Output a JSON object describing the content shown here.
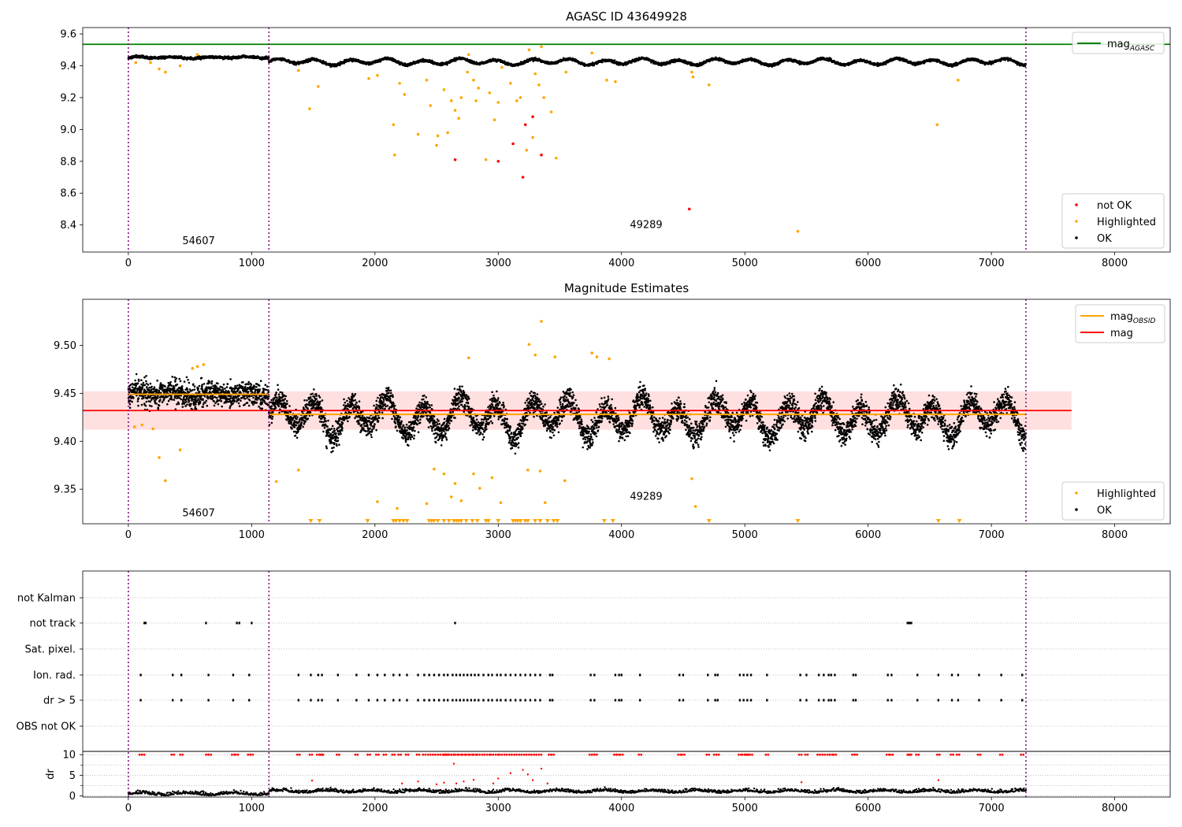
{
  "chart_data": [
    {
      "type": "scatter",
      "title": "AGASC ID 43649928",
      "xlim": [
        -370,
        8450
      ],
      "ylim": [
        8.23,
        9.64
      ],
      "xticks": [
        0,
        1000,
        2000,
        3000,
        4000,
        5000,
        6000,
        7000,
        8000
      ],
      "yticks": [
        8.4,
        8.6,
        8.8,
        9.0,
        9.2,
        9.4,
        9.6
      ],
      "ytick_decimals": 1,
      "obsid_boundaries": [
        0,
        1140,
        7280
      ],
      "obsid_labels": [
        {
          "text": "54607",
          "x": 570,
          "y": 8.28
        },
        {
          "text": "49289",
          "x": 4200,
          "y": 8.38
        }
      ],
      "hlines": [
        {
          "name": "mag_AGASC",
          "y": 9.535,
          "color": "#008000"
        }
      ],
      "legend_top": {
        "position": "upper-right",
        "entries": [
          {
            "label": "mag",
            "sub": "AGASC",
            "color": "#008000",
            "kind": "line"
          }
        ]
      },
      "legend_bottom": {
        "position": "lower-right",
        "entries": [
          {
            "label": "not OK",
            "color": "#ff0000",
            "kind": "dot"
          },
          {
            "label": "Highlighted",
            "color": "#ffa500",
            "kind": "dot"
          },
          {
            "label": "OK",
            "color": "#000000",
            "kind": "dot"
          }
        ]
      },
      "ok_trace": {
        "color": "#000000",
        "segments": [
          {
            "x0": 0,
            "x1": 1140,
            "base": 9.452,
            "amp": 0.006
          },
          {
            "x0": 1140,
            "x1": 7280,
            "base": 9.425,
            "amp": 0.022
          }
        ]
      },
      "highlighted_points": [
        [
          60,
          9.42
        ],
        [
          180,
          9.42
        ],
        [
          250,
          9.38
        ],
        [
          300,
          9.36
        ],
        [
          420,
          9.4
        ],
        [
          560,
          9.47
        ],
        [
          1380,
          9.37
        ],
        [
          1470,
          9.13
        ],
        [
          1540,
          9.27
        ],
        [
          1950,
          9.32
        ],
        [
          2020,
          9.34
        ],
        [
          2150,
          9.03
        ],
        [
          2160,
          8.84
        ],
        [
          2200,
          9.29
        ],
        [
          2240,
          9.22
        ],
        [
          2350,
          8.97
        ],
        [
          2420,
          9.31
        ],
        [
          2450,
          9.15
        ],
        [
          2500,
          8.9
        ],
        [
          2510,
          8.96
        ],
        [
          2560,
          9.25
        ],
        [
          2590,
          8.98
        ],
        [
          2620,
          9.18
        ],
        [
          2650,
          9.12
        ],
        [
          2680,
          9.07
        ],
        [
          2700,
          9.2
        ],
        [
          2750,
          9.36
        ],
        [
          2760,
          9.47
        ],
        [
          2800,
          9.31
        ],
        [
          2820,
          9.18
        ],
        [
          2840,
          9.26
        ],
        [
          2900,
          8.81
        ],
        [
          2930,
          9.23
        ],
        [
          2970,
          9.06
        ],
        [
          3000,
          9.17
        ],
        [
          3030,
          9.39
        ],
        [
          3100,
          9.29
        ],
        [
          3150,
          9.18
        ],
        [
          3180,
          9.2
        ],
        [
          3230,
          8.87
        ],
        [
          3250,
          9.5
        ],
        [
          3280,
          8.95
        ],
        [
          3300,
          9.35
        ],
        [
          3330,
          9.28
        ],
        [
          3350,
          9.52
        ],
        [
          3370,
          9.2
        ],
        [
          3430,
          9.11
        ],
        [
          3470,
          8.82
        ],
        [
          3550,
          9.36
        ],
        [
          3760,
          9.48
        ],
        [
          3880,
          9.31
        ],
        [
          3950,
          9.3
        ],
        [
          4570,
          9.36
        ],
        [
          4580,
          9.33
        ],
        [
          4710,
          9.28
        ],
        [
          5430,
          8.36
        ],
        [
          6560,
          9.03
        ],
        [
          6730,
          9.31
        ]
      ],
      "not_ok_points": [
        [
          2650,
          8.81
        ],
        [
          3000,
          8.8
        ],
        [
          3120,
          8.91
        ],
        [
          3200,
          8.7
        ],
        [
          3220,
          9.03
        ],
        [
          3280,
          9.08
        ],
        [
          3350,
          8.84
        ],
        [
          4550,
          8.5
        ]
      ]
    },
    {
      "type": "scatter",
      "title": "Magnitude Estimates",
      "xlim": [
        -370,
        8450
      ],
      "ylim": [
        9.314,
        9.548
      ],
      "xticks": [
        0,
        1000,
        2000,
        3000,
        4000,
        5000,
        6000,
        7000,
        8000
      ],
      "yticks": [
        9.35,
        9.4,
        9.45,
        9.5
      ],
      "ytick_decimals": 2,
      "obsid_boundaries": [
        0,
        1140,
        7280
      ],
      "obsid_labels": [
        {
          "text": "54607",
          "x": 570,
          "y": 9.322
        },
        {
          "text": "49289",
          "x": 4200,
          "y": 9.339
        }
      ],
      "band": {
        "x0": -370,
        "x1": 7650,
        "y0": 9.412,
        "y1": 9.452,
        "color": "#ffcccc"
      },
      "mag_line": {
        "x0": -370,
        "x1": 7650,
        "y": 9.432,
        "color": "#ff0000"
      },
      "obsid_mag_lines": [
        {
          "x0": 0,
          "x1": 1140,
          "y": 9.449,
          "color": "#ffa500"
        },
        {
          "x0": 1140,
          "x1": 7280,
          "y": 9.428,
          "color": "#ffa500"
        }
      ],
      "legend_top": {
        "position": "upper-right",
        "entries": [
          {
            "label": "mag",
            "sub": "OBSID",
            "color": "#ffa500",
            "kind": "line"
          },
          {
            "label": "mag",
            "sub": "",
            "color": "#ff0000",
            "kind": "line"
          }
        ]
      },
      "legend_bottom": {
        "position": "lower-right",
        "entries": [
          {
            "label": "Highlighted",
            "color": "#ffa500",
            "kind": "dot"
          },
          {
            "label": "OK",
            "color": "#000000",
            "kind": "dot"
          }
        ]
      },
      "ok_trace": {
        "color": "#000000",
        "segments": [
          {
            "x0": 0,
            "x1": 1140,
            "base": 9.449,
            "amp": 0.004,
            "spread": 0.014
          },
          {
            "x0": 1140,
            "x1": 7280,
            "base": 9.425,
            "amp": 0.022,
            "spread": 0.014
          }
        ]
      },
      "highlighted_points": [
        [
          50,
          9.415
        ],
        [
          110,
          9.417
        ],
        [
          200,
          9.413
        ],
        [
          250,
          9.383
        ],
        [
          300,
          9.359
        ],
        [
          420,
          9.391
        ],
        [
          520,
          9.476
        ],
        [
          560,
          9.478
        ],
        [
          610,
          9.48
        ],
        [
          1200,
          9.358
        ],
        [
          1380,
          9.37
        ],
        [
          2020,
          9.337
        ],
        [
          2180,
          9.33
        ],
        [
          2420,
          9.335
        ],
        [
          2480,
          9.371
        ],
        [
          2560,
          9.366
        ],
        [
          2620,
          9.342
        ],
        [
          2650,
          9.356
        ],
        [
          2700,
          9.338
        ],
        [
          2760,
          9.487
        ],
        [
          2800,
          9.366
        ],
        [
          2850,
          9.351
        ],
        [
          2950,
          9.362
        ],
        [
          3020,
          9.336
        ],
        [
          3240,
          9.37
        ],
        [
          3250,
          9.501
        ],
        [
          3300,
          9.49
        ],
        [
          3340,
          9.369
        ],
        [
          3350,
          9.525
        ],
        [
          3380,
          9.336
        ],
        [
          3460,
          9.488
        ],
        [
          3540,
          9.359
        ],
        [
          3760,
          9.492
        ],
        [
          3800,
          9.488
        ],
        [
          3900,
          9.486
        ],
        [
          4570,
          9.361
        ],
        [
          4600,
          9.332
        ]
      ],
      "highlighted_floor": [
        1480,
        1550,
        1940,
        2150,
        2170,
        2200,
        2230,
        2260,
        2440,
        2460,
        2480,
        2510,
        2560,
        2600,
        2640,
        2660,
        2680,
        2700,
        2740,
        2790,
        2830,
        2900,
        2920,
        3000,
        3120,
        3140,
        3160,
        3180,
        3220,
        3240,
        3300,
        3340,
        3400,
        3450,
        3480,
        3860,
        3930,
        4710,
        5430,
        6570,
        6740
      ]
    },
    {
      "type": "scatter",
      "title": "",
      "xlim": [
        -370,
        8450
      ],
      "xticks": [
        0,
        1000,
        2000,
        3000,
        4000,
        5000,
        6000,
        7000,
        8000
      ],
      "obsid_boundaries": [
        0,
        1140,
        7280
      ],
      "flag_rows": [
        "not Kalman",
        "not track",
        "Sat. pixel.",
        "Ion. rad.",
        "dr > 5",
        "OBS not OK"
      ],
      "flag_points": {
        "not track": [
          130,
          140,
          630,
          880,
          900,
          1000,
          2650,
          6320,
          6330,
          6340,
          6350
        ],
        "Ion. rad.": [
          100,
          360,
          430,
          650,
          850,
          980,
          1380,
          1480,
          1540,
          1570,
          1700,
          1850,
          1950,
          2020,
          2080,
          2150,
          2200,
          2260,
          2350,
          2400,
          2440,
          2480,
          2520,
          2560,
          2590,
          2630,
          2660,
          2690,
          2720,
          2750,
          2780,
          2810,
          2840,
          2880,
          2920,
          2950,
          2990,
          3020,
          3060,
          3100,
          3140,
          3180,
          3220,
          3260,
          3300,
          3340,
          3420,
          3440,
          3750,
          3780,
          3950,
          3980,
          4000,
          4150,
          4470,
          4500,
          4700,
          4760,
          4780,
          4960,
          4990,
          5020,
          5050,
          5180,
          5450,
          5500,
          5600,
          5640,
          5680,
          5700,
          5730,
          5880,
          5900,
          6160,
          6190,
          6400,
          6570,
          6680,
          6730,
          6900,
          7080,
          7250
        ],
        "dr > 5": [
          100,
          360,
          430,
          650,
          850,
          980,
          1380,
          1480,
          1540,
          1570,
          1700,
          1850,
          1950,
          2020,
          2080,
          2150,
          2200,
          2260,
          2350,
          2400,
          2440,
          2480,
          2520,
          2560,
          2590,
          2630,
          2660,
          2690,
          2720,
          2750,
          2780,
          2810,
          2840,
          2880,
          2920,
          2950,
          2990,
          3020,
          3060,
          3100,
          3140,
          3180,
          3220,
          3260,
          3300,
          3340,
          3420,
          3440,
          3750,
          3780,
          3950,
          3980,
          4000,
          4150,
          4470,
          4500,
          4700,
          4760,
          4780,
          4960,
          4990,
          5020,
          5050,
          5180,
          5450,
          5500,
          5600,
          5640,
          5680,
          5700,
          5730,
          5880,
          5900,
          6160,
          6190,
          6400,
          6570,
          6680,
          6730,
          6900,
          7080,
          7250
        ]
      },
      "dr_panel": {
        "ylabel": "dr",
        "ylim": [
          -0.3,
          10.8
        ],
        "yticks": [
          0,
          5,
          10
        ],
        "minor_yticks": [
          2.5,
          7.5
        ],
        "ok_color": "#000000",
        "not_ok_color": "#ff0000",
        "saturated_value": 10,
        "saturated_x": [
          100,
          120,
          360,
          430,
          640,
          660,
          850,
          880,
          980,
          1000,
          1380,
          1480,
          1540,
          1560,
          1570,
          1700,
          1850,
          1950,
          2020,
          2080,
          2150,
          2200,
          2260,
          2350,
          2400,
          2440,
          2480,
          2520,
          2560,
          2570,
          2580,
          2590,
          2610,
          2630,
          2660,
          2690,
          2720,
          2750,
          2780,
          2810,
          2840,
          2880,
          2920,
          2950,
          2990,
          3020,
          3060,
          3100,
          3140,
          3180,
          3220,
          3260,
          3300,
          3340,
          3420,
          3440,
          3750,
          3770,
          3790,
          3950,
          3970,
          4000,
          4150,
          4470,
          4500,
          4700,
          4760,
          4780,
          4960,
          4990,
          5010,
          5020,
          5050,
          5180,
          5450,
          5500,
          5600,
          5640,
          5680,
          5700,
          5730,
          5880,
          5900,
          6160,
          6190,
          6330,
          6340,
          6400,
          6570,
          6680,
          6730,
          6900,
          7080,
          7250
        ],
        "mid_points": [
          [
            1490,
            3.7
          ],
          [
            2220,
            3.0
          ],
          [
            2350,
            3.5
          ],
          [
            2500,
            2.8
          ],
          [
            2560,
            3.2
          ],
          [
            2640,
            7.8
          ],
          [
            2660,
            3.0
          ],
          [
            2720,
            3.5
          ],
          [
            2800,
            3.9
          ],
          [
            2960,
            3.0
          ],
          [
            3000,
            4.2
          ],
          [
            3100,
            5.5
          ],
          [
            3200,
            6.3
          ],
          [
            3240,
            5.2
          ],
          [
            3280,
            3.8
          ],
          [
            3350,
            6.6
          ],
          [
            3400,
            3.0
          ],
          [
            5460,
            3.3
          ],
          [
            6570,
            3.8
          ]
        ]
      }
    }
  ]
}
